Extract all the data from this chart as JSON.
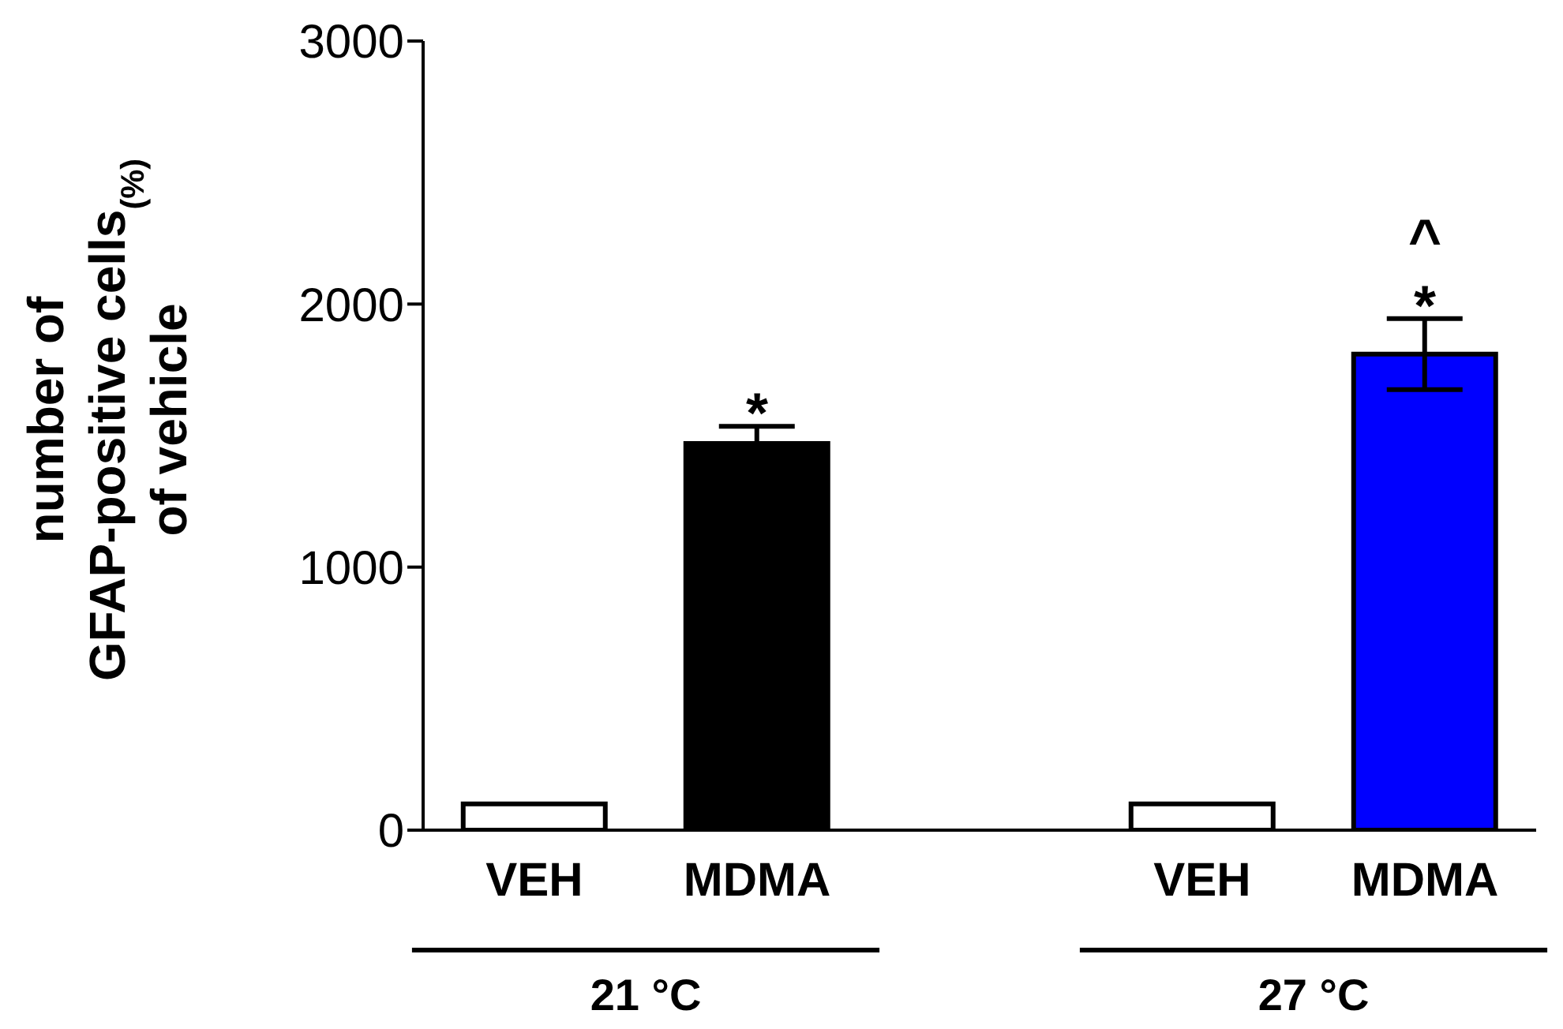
{
  "chart_data": {
    "type": "bar",
    "ylabel": "number of\nGFAP-positive cells$_{(%)}$\nof vehicle",
    "categories": [
      "VEH",
      "MDMA",
      null,
      "VEH",
      "MDMA"
    ],
    "values": [
      100,
      1470,
      null,
      100,
      1810
    ],
    "errors": [
      null,
      65,
      null,
      null,
      135
    ],
    "value_labels": [
      null,
      "*",
      null,
      null,
      "*"
    ],
    "colors": [
      "#ffffff",
      "#000000",
      null,
      "#ffffff",
      "#0000ff"
    ],
    "ylim": [
      0,
      3000
    ],
    "yticks": [
      0,
      1000,
      2000,
      3000
    ],
    "grid": false,
    "legend": false,
    "annotations": [
      "^",
      "21 °C",
      "27 °C"
    ]
  }
}
